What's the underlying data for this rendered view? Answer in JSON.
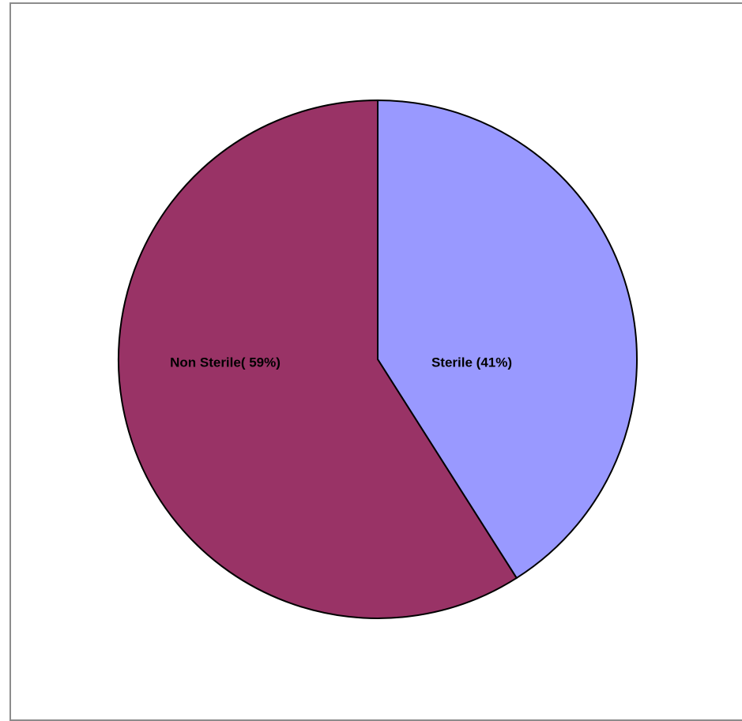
{
  "chart_data": {
    "type": "pie",
    "title": "",
    "slices": [
      {
        "label": "Sterile (41%)",
        "value": 41,
        "color": "#9999ff"
      },
      {
        "label": "Non Sterile( 59%)",
        "value": 59,
        "color": "#993366"
      }
    ],
    "start_angle": "12 o'clock",
    "direction": "clockwise",
    "legend": "none"
  }
}
